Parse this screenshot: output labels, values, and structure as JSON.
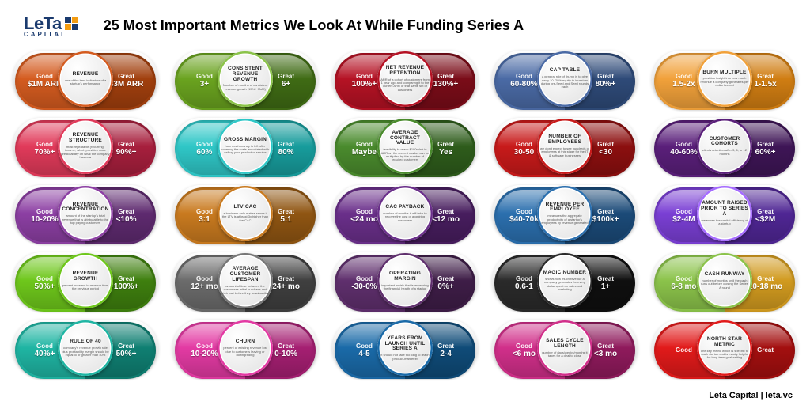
{
  "brand": {
    "name": "LeTa",
    "sub": "CAPITAL"
  },
  "title": "25 Most Important  Metrics We Look At  While Funding Series A",
  "footer": "Leta Capital | leta.vc",
  "labels": {
    "good": "Good",
    "great": "Great"
  },
  "metrics": [
    {
      "name": "REVENUE",
      "desc": "one of the best indicators of a startup's performance",
      "good": "$1M ARR",
      "great": "$3M ARR",
      "goodColor": "#d45b1f",
      "greatColor": "#a13f0d",
      "ring": "#d45b1f"
    },
    {
      "name": "CONSISTENT REVENUE GROWTH",
      "desc": "Number of months of consistent revenue growth (15%+ MoM)",
      "good": "3+",
      "great": "6+",
      "goodColor": "#6aa31f",
      "greatColor": "#3f6b14",
      "ring": "#8bc34a"
    },
    {
      "name": "NET REVENUE RETENTION",
      "desc": "ARR of a cohort of customers from 1 year ago and comparing it to the current ARR of that same set of customers",
      "good": "100%+",
      "great": "130%+",
      "goodColor": "#b51224",
      "greatColor": "#7a0c18",
      "ring": "#b51224"
    },
    {
      "name": "CAP TABLE",
      "desc": "a general rule of thumb is to give away 10–20% equity to investors during pre-Seed and Seed rounds each",
      "good": "60-80%",
      "great": "80%+",
      "goodColor": "#4a6aa5",
      "greatColor": "#2e4a78",
      "ring": "#4a6aa5"
    },
    {
      "name": "BURN MULTIPLE",
      "desc": "provides insight into how much revenue a company generates per dollar burned",
      "good": "1.5-2x",
      "great": "1-1.5x",
      "goodColor": "#f1a13a",
      "greatColor": "#d07d12",
      "ring": "#f1a13a"
    },
    {
      "name": "REVENUE STRUCTURE",
      "desc": "most repeatable (recurring) income, which provides more predictability on what the company has now",
      "good": "70%+",
      "great": "90%+",
      "goodColor": "#e13a5a",
      "greatColor": "#a71f3d",
      "ring": "#e13a5a"
    },
    {
      "name": "GROSS MARGIN",
      "desc": "how much money is left after covering the costs associated with selling your product or service",
      "good": "60%",
      "great": "80%",
      "goodColor": "#2fc7c7",
      "greatColor": "#179c9c",
      "ring": "#2fc7c7"
    },
    {
      "name": "AVERAGE CONTRACT VALUE",
      "desc": "feasibility to reach $100mln+ in ARR on the current market can be multiplied by the number of required customers",
      "good": "Maybe",
      "great": "Yes",
      "goodColor": "#4a8b2d",
      "greatColor": "#2e5c1b",
      "ring": "#4a8b2d"
    },
    {
      "name": "NUMBER OF EMPLOYEES",
      "desc": "we don't expect to see hundreds of employees at this stage for the IT & software businesses",
      "good": "30-50",
      "great": "<30",
      "goodColor": "#c81a1a",
      "greatColor": "#8c0f0f",
      "ring": "#c81a1a"
    },
    {
      "name": "CUSTOMER COHORTS",
      "desc": "clients retention after 3, 6, or 12 months",
      "good": "40-60%",
      "great": "60%+",
      "goodColor": "#5a1f7a",
      "greatColor": "#3e1556",
      "ring": "#5a1f7a"
    },
    {
      "name": "REVENUE CONCENTRATION",
      "desc": "amount of the startup's total revenue that is attributable to the top paying customers",
      "good": "10-20%",
      "great": "<10%",
      "goodColor": "#8c3fa3",
      "greatColor": "#5e2a6f",
      "ring": "#8c3fa3"
    },
    {
      "name": "LTV:CAC",
      "desc": "a business only makes sense if the LTV is at least 3x higher than the CAC",
      "good": "3:1",
      "great": "5:1",
      "goodColor": "#c97a1f",
      "greatColor": "#8f5512",
      "ring": "#c97a1f"
    },
    {
      "name": "CAC PAYBACK",
      "desc": "number of months it will take to recover the cost of acquiring customers",
      "good": "<24 mo",
      "great": "<12 mo",
      "goodColor": "#6a2f8a",
      "greatColor": "#471d5e",
      "ring": "#6a2f8a"
    },
    {
      "name": "REVENUE PER EMPLOYEE",
      "desc": "measures the aggregate productivity of a startup's employees by revenue generated",
      "good": "$40-70k",
      "great": "$100k+",
      "goodColor": "#2b6fae",
      "greatColor": "#1b4a78",
      "ring": "#2b6fae"
    },
    {
      "name": "AMOUNT RAISED PRIOR TO SERIES A",
      "desc": "measures the capital efficiency of a startup",
      "good": "$2-4M",
      "great": "<$2M",
      "goodColor": "#7a3fd4",
      "greatColor": "#4f2694",
      "ring": "#a56bff"
    },
    {
      "name": "REVENUE GROWTH",
      "desc": "percent increase in revenue from the previous period",
      "good": "50%+",
      "great": "100%+",
      "goodColor": "#6ec71b",
      "greatColor": "#3e7f0e",
      "ring": "#6ec71b"
    },
    {
      "name": "AVERAGE CUSTOMER LIFESPAN",
      "desc": "amount of time between the customer's initial purchase and their last before they unsubscribe",
      "good": "12+ mo",
      "great": "24+ mo",
      "goodColor": "#6b6b6b",
      "greatColor": "#3f3f3f",
      "ring": "#777"
    },
    {
      "name": "OPERATING MARGIN",
      "desc": "important metric that is assessing the financial health of a startup",
      "good": "-30-0%",
      "great": "0%+",
      "goodColor": "#5f2f6d",
      "greatColor": "#3e1d47",
      "ring": "#5f2f6d"
    },
    {
      "name": "MAGIC NUMBER",
      "desc": "shows how much revenue a company generates for every dollar spent on sales and marketing",
      "good": "0.6-1",
      "great": "1+",
      "goodColor": "#2a2a2a",
      "greatColor": "#0f0f0f",
      "ring": "#2a2a2a"
    },
    {
      "name": "CASH RUNWAY",
      "desc": "number of months until the cash runs out before closing the Series A round",
      "good": "6-8 mo",
      "great": "10-18 mo",
      "goodColor": "#8bc34a",
      "greatColor": "#d19a1f",
      "ring": "#8bc34a"
    },
    {
      "name": "RULE OF 40",
      "desc": "company's revenue growth rate plus profitability margin should be equal to or greater than 40%",
      "good": "40%+",
      "great": "50%+",
      "goodColor": "#1fb5a3",
      "greatColor": "#0f7f72",
      "ring": "#1fb5a3"
    },
    {
      "name": "CHURN",
      "desc": "percent of existing revenue lost due to customers leaving or downgrading",
      "good": "10-20%",
      "great": "0-10%",
      "goodColor": "#e33aa3",
      "greatColor": "#a51f72",
      "ring": "#e33aa3"
    },
    {
      "name": "YEARS FROM LAUNCH UNTIL SERIES A",
      "desc": "it should not take too long to reach \"product-market fit\"",
      "good": "4-5",
      "great": "2-4",
      "goodColor": "#1a6aa8",
      "greatColor": "#0f4b78",
      "ring": "#1a6aa8"
    },
    {
      "name": "SALES CYCLE LENGTH",
      "desc": "number of days/weeks/months it takes for a deal to close",
      "good": "<6 mo",
      "great": "<3 mo",
      "goodColor": "#d12f8a",
      "greatColor": "#8f1a5c",
      "ring": "#d12f8a"
    },
    {
      "name": "NORTH STAR METRIC",
      "desc": "one key metric which is specific to each startup and is mostly helpful for long-term goal-setting",
      "good": "",
      "great": "",
      "goodColor": "#e11a1a",
      "greatColor": "#a30f0f",
      "ring": "#e11a1a"
    }
  ]
}
